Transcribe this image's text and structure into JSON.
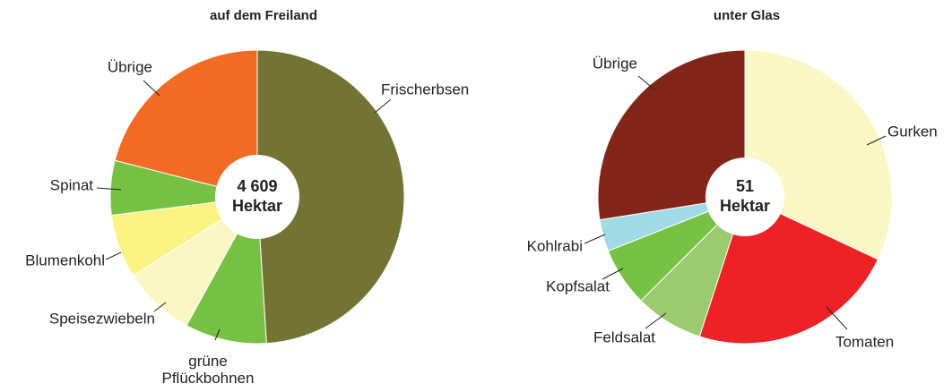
{
  "chart_data": [
    {
      "type": "donut",
      "title": "auf dem Freiland",
      "center_label": [
        "4 609",
        "Hektar"
      ],
      "categories": [
        "Frischerbsen",
        "grüne Pflückbohnen",
        "Speisezwiebeln",
        "Blumenkohl",
        "Spinat",
        "Übrige"
      ],
      "values": [
        49,
        9,
        8,
        7,
        6,
        21
      ],
      "colors": [
        "#737334",
        "#76c043",
        "#faf7c4",
        "#fbf383",
        "#76c043",
        "#f26b25"
      ]
    },
    {
      "type": "donut",
      "title": "unter Glas",
      "center_label": [
        "51",
        "Hektar"
      ],
      "categories": [
        "Gurken",
        "Tomaten",
        "Feldsalat",
        "Kopfsalat",
        "Kohlrabi",
        "Übrige"
      ],
      "values": [
        32,
        23,
        7.5,
        6.5,
        3.5,
        27.5
      ],
      "colors": [
        "#faf7c4",
        "#ec2227",
        "#9bcb6e",
        "#76c043",
        "#a0dae6",
        "#83261a"
      ]
    }
  ]
}
